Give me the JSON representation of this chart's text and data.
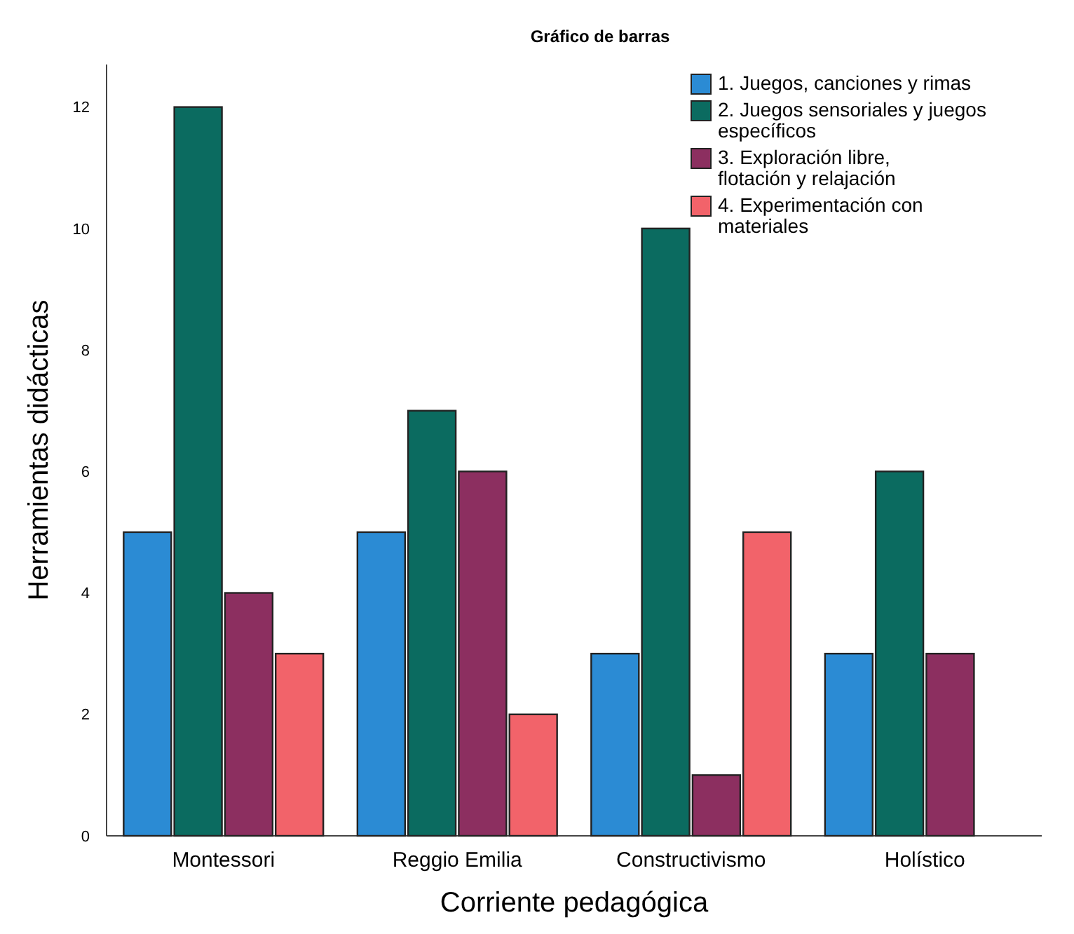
{
  "chart_data": {
    "type": "bar",
    "title": "Gráfico de barras",
    "xlabel": "Corriente pedagógica",
    "ylabel": "Herramientas didácticas",
    "categories": [
      "Montessori",
      "Reggio Emilia",
      "Constructivismo",
      "Holístico"
    ],
    "series": [
      {
        "name": "1. Juegos, canciones y rimas",
        "color": "#2b8bd4",
        "values": [
          5,
          5,
          3,
          3
        ]
      },
      {
        "name": "2. Juegos sensoriales y juegos específicos",
        "color": "#0b6b60",
        "values": [
          12,
          7,
          10,
          6
        ]
      },
      {
        "name": "3. Exploración libre, flotación y relajación",
        "color": "#8c2f60",
        "values": [
          4,
          6,
          1,
          3
        ]
      },
      {
        "name": "4. Experimentación con materiales",
        "color": "#f2636a",
        "values": [
          3,
          2,
          5,
          null
        ]
      }
    ],
    "ylim": [
      0,
      12.7
    ],
    "yticks": [
      0,
      2,
      4,
      6,
      8,
      10,
      12
    ],
    "grid": false,
    "legend": "top right"
  }
}
